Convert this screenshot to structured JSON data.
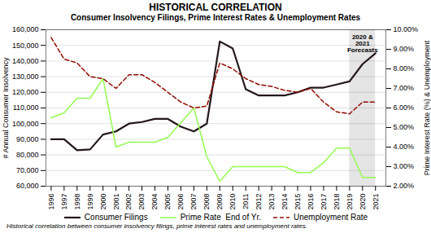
{
  "chart_data": {
    "type": "line",
    "title": "HISTORICAL CORRELATION",
    "subtitle": "Consumer Insolvency Filings, Prime Interest Rates & Unemployment Rates",
    "caption": "Historical correlation between consumer insolvency filings, prime interest rates and unemployment rates.",
    "x": [
      1996,
      1997,
      1998,
      1999,
      2000,
      2001,
      2002,
      2003,
      2004,
      2005,
      2006,
      2007,
      2008,
      2009,
      2010,
      2011,
      2012,
      2013,
      2014,
      2015,
      2016,
      2017,
      2018,
      2019,
      2020,
      2021
    ],
    "xlim": [
      1995.6,
      2021.8
    ],
    "xticks": [
      1996,
      1997,
      1998,
      1999,
      2000,
      2001,
      2002,
      2003,
      2004,
      2005,
      2006,
      2007,
      2008,
      2009,
      2010,
      2011,
      2012,
      2013,
      2014,
      2015,
      2016,
      2017,
      2018,
      2019,
      2020,
      2021
    ],
    "ylim": [
      60000,
      160000
    ],
    "yticks": [
      {
        "value": 60000,
        "label": "60,000"
      },
      {
        "value": 70000,
        "label": "70,000"
      },
      {
        "value": 80000,
        "label": "80,000"
      },
      {
        "value": 90000,
        "label": "90,000"
      },
      {
        "value": 100000,
        "label": "100,000"
      },
      {
        "value": 110000,
        "label": "110,000"
      },
      {
        "value": 120000,
        "label": "120,000"
      },
      {
        "value": 130000,
        "label": "130,000"
      },
      {
        "value": 140000,
        "label": "140,000"
      },
      {
        "value": 150000,
        "label": "150,000"
      },
      {
        "value": 160000,
        "label": "160,000"
      }
    ],
    "ylabel": "# Annual Consumer Insolvency",
    "y2lim": [
      2.0,
      10.0
    ],
    "y2ticks": [
      {
        "value": 2.0,
        "label": "2.00%"
      },
      {
        "value": 3.0,
        "label": "3.00%"
      },
      {
        "value": 4.0,
        "label": "4.00%"
      },
      {
        "value": 5.0,
        "label": "5.00%"
      },
      {
        "value": 6.0,
        "label": "6.00%"
      },
      {
        "value": 7.0,
        "label": "7.00%"
      },
      {
        "value": 8.0,
        "label": "8.00%"
      },
      {
        "value": 9.0,
        "label": "9.00%"
      },
      {
        "value": 10.0,
        "label": "10.00%"
      }
    ],
    "y2label": "Prime Interest Rate (%) & Unemployment",
    "grid": true,
    "legend": "bottom",
    "series": [
      {
        "name": "Consumer Filings",
        "line_style": "solid",
        "values": [
          90000,
          90000,
          83000,
          83500,
          93000,
          95000,
          100000,
          101000,
          103000,
          103000,
          98000,
          95000,
          100000,
          152500,
          148000,
          122000,
          118000,
          118000,
          118000,
          120000,
          123000,
          123000,
          125000,
          127000,
          138000,
          145000
        ]
      },
      {
        "name": "Prime Rate  End of Yr.",
        "axis": "y2",
        "line_style": "solid",
        "values": [
          5.5,
          5.75,
          6.5,
          6.5,
          7.5,
          4.0,
          4.25,
          4.25,
          4.25,
          4.5,
          5.25,
          6.0,
          3.5,
          2.25,
          3.0,
          3.0,
          3.0,
          3.0,
          3.0,
          2.7,
          2.7,
          3.2,
          3.95,
          3.95,
          2.45,
          2.45
        ]
      },
      {
        "name": "Unemployment Rate",
        "axis": "y2",
        "line_style": "dashed",
        "values": [
          9.6,
          8.5,
          8.3,
          7.6,
          7.5,
          7.0,
          7.7,
          7.7,
          7.3,
          6.8,
          6.3,
          6.0,
          6.1,
          8.3,
          8.0,
          7.5,
          7.2,
          7.1,
          6.9,
          6.8,
          7.0,
          6.3,
          5.8,
          5.7,
          6.3,
          6.3
        ]
      }
    ],
    "forecast_span": [
      2019,
      2021
    ],
    "annotations": [
      {
        "text": "2020 &\n2021\nForecasts",
        "x": 2020,
        "y": 157000
      }
    ]
  }
}
